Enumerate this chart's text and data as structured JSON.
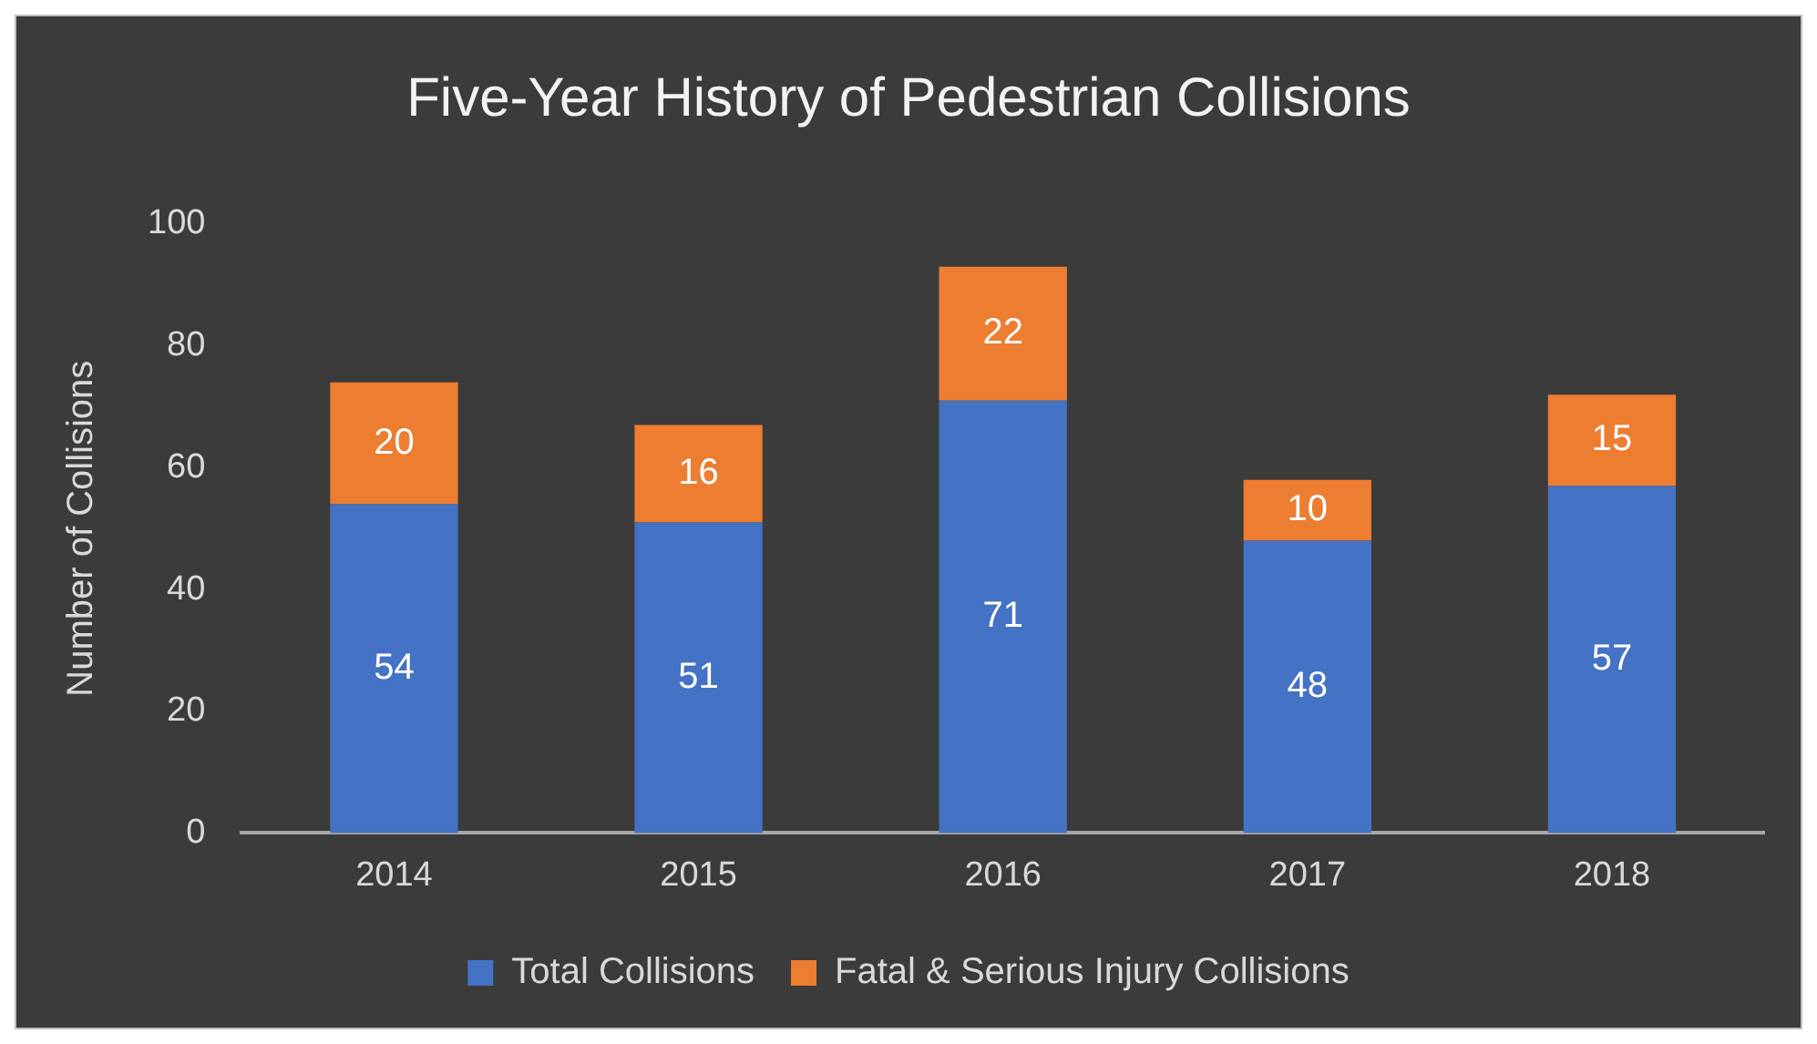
{
  "chart_data": {
    "type": "bar",
    "title": "Five-Year History of Pedestrian Collisions",
    "ylabel": "Number of Collisions",
    "categories": [
      "2014",
      "2015",
      "2016",
      "2017",
      "2018"
    ],
    "series": [
      {
        "name": "Total Collisions",
        "color": "#4472c4",
        "values": [
          54,
          51,
          71,
          48,
          57
        ]
      },
      {
        "name": "Fatal & Serious Injury Collisions",
        "color": "#ed7d31",
        "values": [
          20,
          16,
          22,
          10,
          15
        ]
      }
    ],
    "stacked": true,
    "ylim": [
      0,
      100
    ],
    "yticks": [
      0,
      20,
      40,
      60,
      80,
      100
    ],
    "grid": false,
    "legend": "bottom",
    "data_labels": true
  }
}
